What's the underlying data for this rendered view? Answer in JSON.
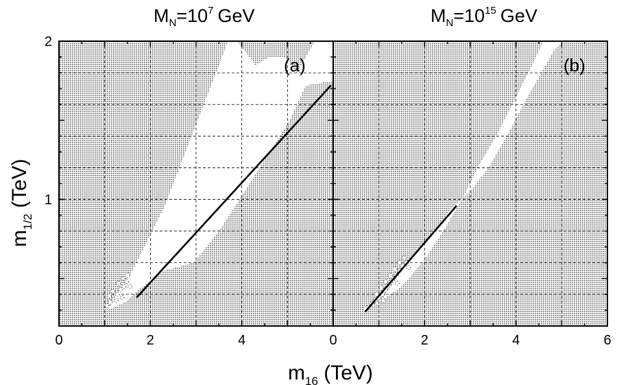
{
  "chart_data": [
    {
      "type": "area",
      "panel": "a",
      "title_main": "M",
      "title_sub": "N",
      "title_mid": "=10",
      "title_exp": "7",
      "title_unit": "GeV",
      "tag": "(a)",
      "xlabel": "m16 (TeV)",
      "ylabel": "m1/2 (TeV)",
      "xlim": [
        0,
        6
      ],
      "ylim": [
        0.2,
        2.0
      ],
      "xticks": [
        0,
        2,
        4
      ],
      "xtick_labels": [
        "0",
        "2",
        "4"
      ],
      "yticks": [
        1,
        2
      ],
      "ytick_labels": [
        "1",
        "2"
      ],
      "allowed_region": [
        [
          1.05,
          0.3
        ],
        [
          1.45,
          0.35
        ],
        [
          1.7,
          0.42
        ],
        [
          2.3,
          0.55
        ],
        [
          2.95,
          0.6
        ],
        [
          3.5,
          0.8
        ],
        [
          3.95,
          1.0
        ],
        [
          4.5,
          1.25
        ],
        [
          5.05,
          1.5
        ],
        [
          5.4,
          1.72
        ],
        [
          6.0,
          1.75
        ],
        [
          6.0,
          2.0
        ],
        [
          5.6,
          2.0
        ],
        [
          5.2,
          1.8
        ],
        [
          4.95,
          1.9
        ],
        [
          4.6,
          1.9
        ],
        [
          4.3,
          1.85
        ],
        [
          3.9,
          2.0
        ],
        [
          3.7,
          2.0
        ],
        [
          3.3,
          1.7
        ],
        [
          2.7,
          1.25
        ],
        [
          2.3,
          0.95
        ],
        [
          1.9,
          0.72
        ],
        [
          1.55,
          0.52
        ],
        [
          1.3,
          0.42
        ]
      ],
      "coannihilation_points": [
        [
          1.05,
          0.33
        ],
        [
          1.12,
          0.35
        ],
        [
          1.2,
          0.37
        ],
        [
          1.28,
          0.4
        ],
        [
          1.35,
          0.43
        ],
        [
          1.42,
          0.45
        ],
        [
          1.48,
          0.48
        ],
        [
          1.18,
          0.42
        ],
        [
          1.3,
          0.47
        ],
        [
          1.4,
          0.5
        ],
        [
          1.5,
          0.52
        ],
        [
          1.55,
          0.45
        ],
        [
          1.25,
          0.36
        ],
        [
          1.38,
          0.38
        ],
        [
          1.1,
          0.39
        ]
      ],
      "fit_line": [
        [
          1.7,
          0.38
        ],
        [
          5.95,
          1.72
        ]
      ]
    },
    {
      "type": "area",
      "panel": "b",
      "title_main": "M",
      "title_sub": "N",
      "title_mid": "=10",
      "title_exp": "15",
      "title_unit": "GeV",
      "tag": "(b)",
      "xlabel": "m16 (TeV)",
      "ylabel": "m1/2 (TeV)",
      "xlim": [
        0,
        6
      ],
      "ylim": [
        0.2,
        2.0
      ],
      "xticks": [
        0,
        2,
        4,
        6
      ],
      "xtick_labels": [
        "0",
        "2",
        "4",
        "6"
      ],
      "yticks": [
        1,
        2
      ],
      "ytick_labels": [
        "",
        ""
      ],
      "allowed_region": [
        [
          0.75,
          0.3
        ],
        [
          1.1,
          0.38
        ],
        [
          1.6,
          0.6
        ],
        [
          2.1,
          0.75
        ],
        [
          2.6,
          0.95
        ],
        [
          3.0,
          1.05
        ],
        [
          3.4,
          1.2
        ],
        [
          3.8,
          1.4
        ],
        [
          4.2,
          1.62
        ],
        [
          4.55,
          1.8
        ],
        [
          4.85,
          1.95
        ],
        [
          5.05,
          2.0
        ],
        [
          4.6,
          2.0
        ],
        [
          4.3,
          1.82
        ],
        [
          3.95,
          1.62
        ],
        [
          3.6,
          1.42
        ],
        [
          3.2,
          1.22
        ],
        [
          2.85,
          1.02
        ],
        [
          2.45,
          0.82
        ],
        [
          2.0,
          0.62
        ],
        [
          1.5,
          0.45
        ]
      ],
      "coannihilation_points": [
        [
          0.78,
          0.32
        ],
        [
          0.85,
          0.34
        ],
        [
          0.92,
          0.36
        ],
        [
          1.0,
          0.38
        ],
        [
          1.08,
          0.4
        ],
        [
          1.15,
          0.43
        ],
        [
          1.22,
          0.46
        ],
        [
          1.3,
          0.49
        ],
        [
          1.38,
          0.52
        ],
        [
          1.45,
          0.55
        ],
        [
          1.52,
          0.58
        ],
        [
          1.6,
          0.6
        ],
        [
          0.95,
          0.4
        ],
        [
          1.05,
          0.44
        ],
        [
          1.15,
          0.48
        ],
        [
          1.25,
          0.52
        ],
        [
          1.35,
          0.56
        ],
        [
          1.45,
          0.6
        ],
        [
          1.55,
          0.63
        ],
        [
          1.65,
          0.57
        ],
        [
          0.7,
          0.31
        ],
        [
          1.1,
          0.36
        ],
        [
          1.4,
          0.47
        ]
      ],
      "fit_line": [
        [
          0.7,
          0.29
        ],
        [
          2.7,
          0.96
        ]
      ]
    }
  ]
}
